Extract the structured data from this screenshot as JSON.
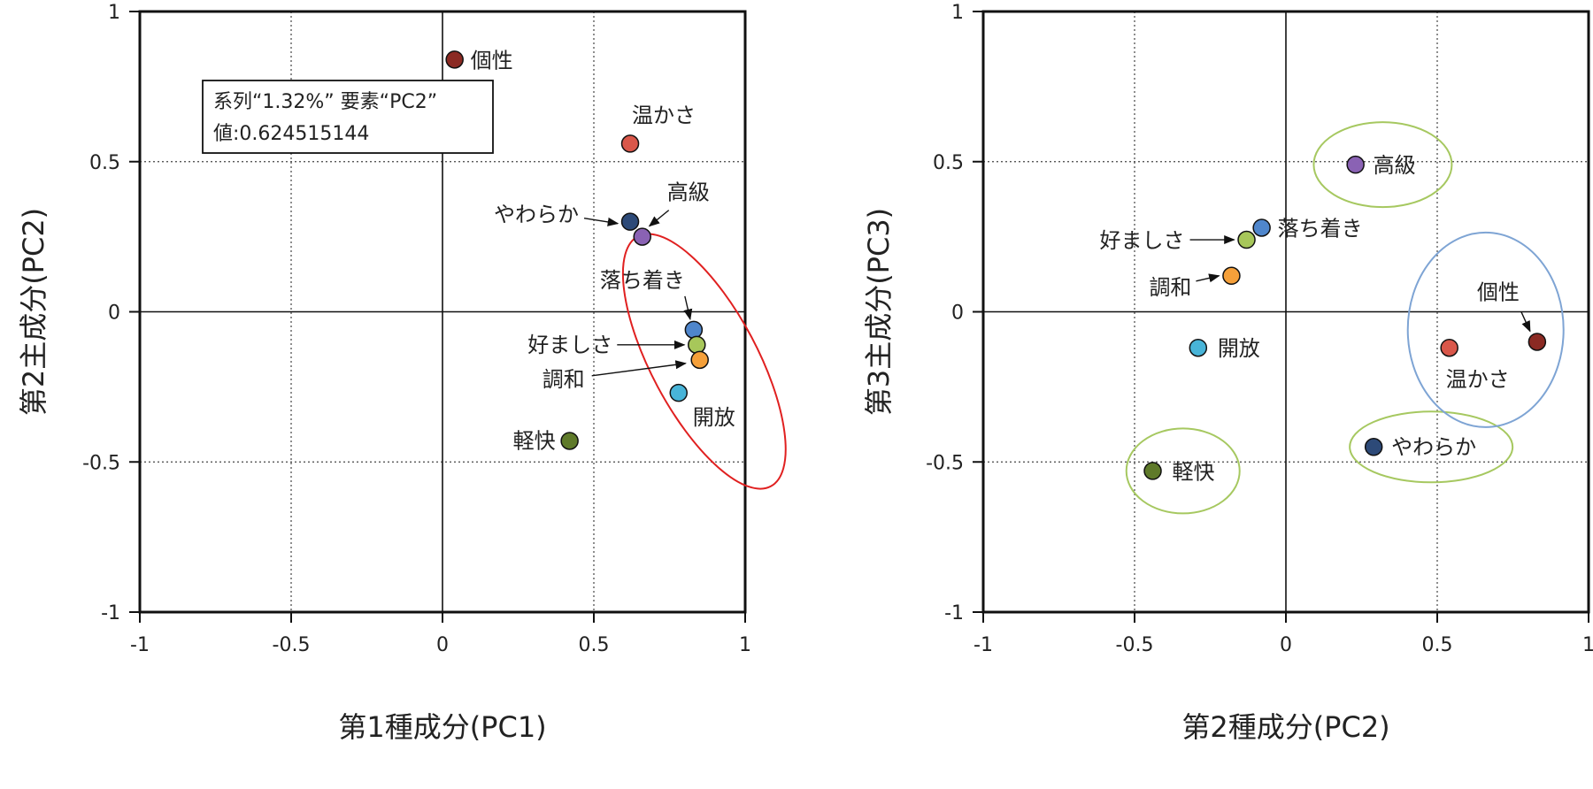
{
  "colors": {
    "個性": "#8b2a23",
    "温かさ": "#d9574a",
    "やわらか": "#2d4a78",
    "高級": "#8a62b4",
    "落ち着き": "#4f86cc",
    "好ましさ": "#a7c75a",
    "調和": "#f5a03a",
    "開放": "#48b4d8",
    "軽快": "#5f7a2a",
    "ellipse_red": "#e02020",
    "ellipse_green": "#a6c860",
    "ellipse_blue": "#7ea4d4"
  },
  "tooltip": {
    "line1": "系列“1.32%” 要素“PC2”",
    "line2": "値:0.624515144"
  },
  "chart_data": [
    {
      "type": "scatter",
      "xlabel": "第1種成分(PC1)",
      "ylabel": "第2主成分(PC2)",
      "xlim": [
        -1,
        1
      ],
      "ylim": [
        -1,
        1
      ],
      "xticks": [
        "-1",
        "-0.5",
        "0",
        "0.5",
        "1"
      ],
      "yticks": [
        "1",
        "0.5",
        "0",
        "-0.5",
        "-1"
      ],
      "grid": "dotted at ±0.5, solid at 0",
      "points": [
        {
          "label": "個性",
          "x": 0.04,
          "y": 0.84
        },
        {
          "label": "温かさ",
          "x": 0.62,
          "y": 0.56
        },
        {
          "label": "やわらか",
          "x": 0.62,
          "y": 0.3
        },
        {
          "label": "高級",
          "x": 0.66,
          "y": 0.25
        },
        {
          "label": "落ち着き",
          "x": 0.83,
          "y": -0.06
        },
        {
          "label": "好ましさ",
          "x": 0.84,
          "y": -0.11
        },
        {
          "label": "調和",
          "x": 0.85,
          "y": -0.16
        },
        {
          "label": "開放",
          "x": 0.78,
          "y": -0.27
        },
        {
          "label": "軽快",
          "x": 0.42,
          "y": -0.43
        }
      ]
    },
    {
      "type": "scatter",
      "xlabel": "第2種成分(PC2)",
      "ylabel": "第3主成分(PC3)",
      "xlim": [
        -1,
        1
      ],
      "ylim": [
        -1,
        1
      ],
      "xticks": [
        "-1",
        "-0.5",
        "0",
        "0.5",
        "1"
      ],
      "yticks": [
        "1",
        "0.5",
        "0",
        "-0.5",
        "-1"
      ],
      "grid": "dotted at ±0.5, solid at 0",
      "points": [
        {
          "label": "高級",
          "x": 0.23,
          "y": 0.49
        },
        {
          "label": "落ち着き",
          "x": -0.08,
          "y": 0.28
        },
        {
          "label": "好ましさ",
          "x": -0.13,
          "y": 0.24
        },
        {
          "label": "調和",
          "x": -0.18,
          "y": 0.12
        },
        {
          "label": "開放",
          "x": -0.29,
          "y": -0.12
        },
        {
          "label": "個性",
          "x": 0.83,
          "y": -0.1
        },
        {
          "label": "温かさ",
          "x": 0.54,
          "y": -0.12
        },
        {
          "label": "やわらか",
          "x": 0.29,
          "y": -0.45
        },
        {
          "label": "軽快",
          "x": -0.44,
          "y": -0.53
        }
      ]
    }
  ]
}
